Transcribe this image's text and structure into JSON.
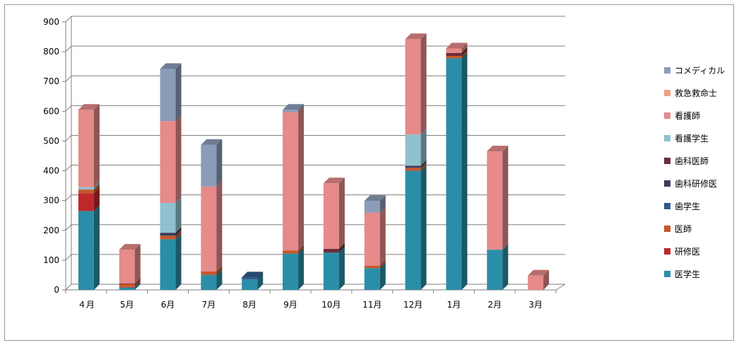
{
  "chart_data": {
    "type": "bar",
    "stacked": true,
    "style": "3d-column",
    "categories": [
      "４月",
      "5月",
      "6月",
      "7月",
      "8月",
      "9月",
      "10月",
      "11月",
      "12月",
      "1月",
      "2月",
      "3月"
    ],
    "ylim": [
      0,
      900
    ],
    "yticks": [
      0,
      100,
      200,
      300,
      400,
      500,
      600,
      700,
      800,
      900
    ],
    "grid": true,
    "legend_position": "right",
    "series": [
      {
        "name": "医学生",
        "color": "#2B8EA8",
        "values": [
          265,
          8,
          170,
          50,
          35,
          122,
          125,
          73,
          400,
          778,
          135,
          0
        ]
      },
      {
        "name": "研修医",
        "color": "#C0272D",
        "values": [
          60,
          2,
          0,
          0,
          0,
          0,
          0,
          0,
          0,
          0,
          0,
          0
        ]
      },
      {
        "name": "医師",
        "color": "#C4582A",
        "values": [
          12,
          10,
          12,
          12,
          0,
          10,
          0,
          8,
          10,
          8,
          0,
          0
        ]
      },
      {
        "name": "歯学生",
        "color": "#2F5B8C",
        "values": [
          0,
          0,
          0,
          0,
          7,
          0,
          0,
          0,
          0,
          0,
          0,
          0
        ]
      },
      {
        "name": "歯科研修医",
        "color": "#3A3D5E",
        "values": [
          0,
          0,
          10,
          0,
          0,
          0,
          0,
          0,
          7,
          0,
          0,
          0
        ]
      },
      {
        "name": "歯科医師",
        "color": "#6B2E3C",
        "values": [
          0,
          2,
          0,
          0,
          0,
          0,
          13,
          0,
          0,
          10,
          0,
          0
        ]
      },
      {
        "name": "看護学生",
        "color": "#8FC1CE",
        "values": [
          8,
          0,
          100,
          0,
          0,
          0,
          0,
          0,
          105,
          0,
          0,
          0
        ]
      },
      {
        "name": "看護師",
        "color": "#E68A8A",
        "values": [
          260,
          113,
          275,
          285,
          0,
          465,
          220,
          178,
          320,
          15,
          330,
          48
        ]
      },
      {
        "name": "救急救命士",
        "color": "#F0A080",
        "values": [
          0,
          0,
          0,
          0,
          0,
          0,
          0,
          0,
          0,
          0,
          0,
          0
        ]
      },
      {
        "name": "コメディカル",
        "color": "#8B9CB8",
        "values": [
          0,
          0,
          175,
          140,
          0,
          8,
          0,
          40,
          0,
          0,
          0,
          0
        ]
      }
    ]
  }
}
